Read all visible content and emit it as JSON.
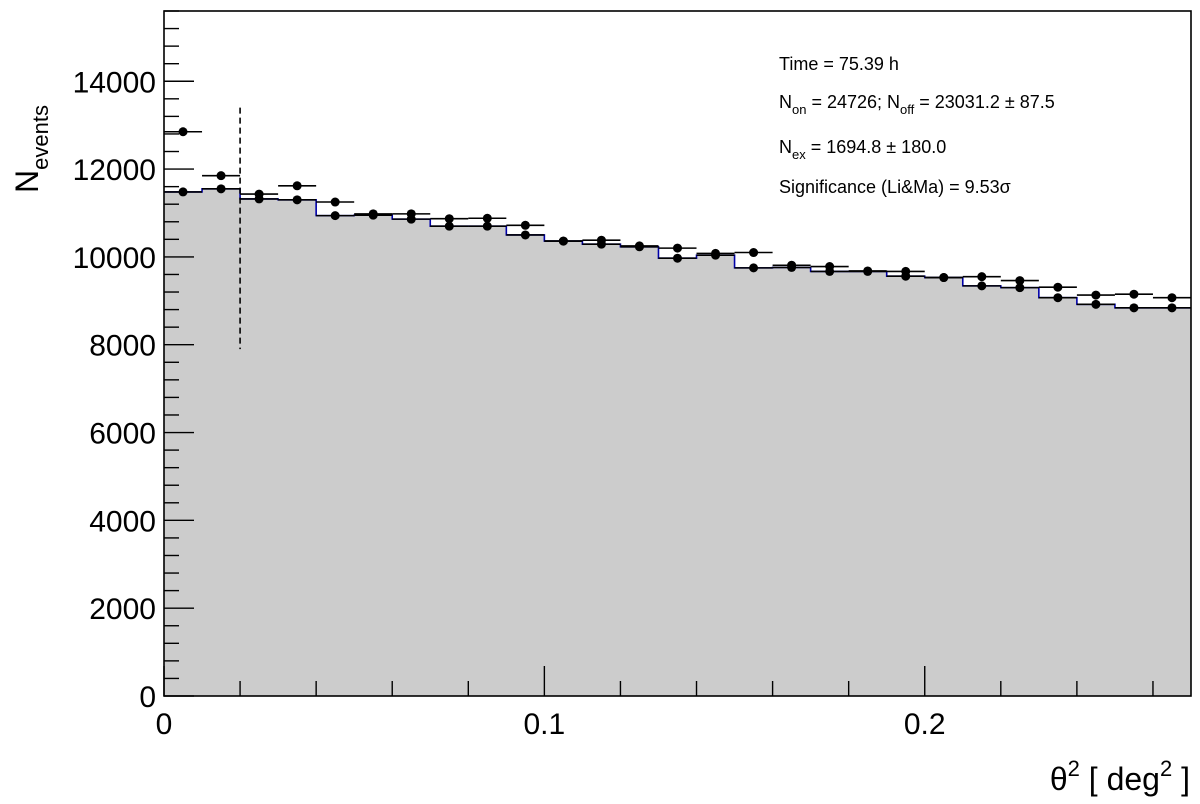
{
  "chart_data": {
    "type": "histogram",
    "xlabel": {
      "base": "θ",
      "sup": "2",
      "mid": " [ deg",
      "sup2": "2",
      "end": " ]"
    },
    "ylabel": {
      "base": "N",
      "sub": "events"
    },
    "xlim": [
      0,
      0.27
    ],
    "ylim": [
      0,
      15600
    ],
    "x_ticks": [
      {
        "value": 0,
        "label": "0"
      },
      {
        "value": 0.1,
        "label": "0.1"
      },
      {
        "value": 0.2,
        "label": "0.2"
      }
    ],
    "y_ticks": [
      {
        "value": 0,
        "label": "0"
      },
      {
        "value": 2000,
        "label": "2000"
      },
      {
        "value": 4000,
        "label": "4000"
      },
      {
        "value": 6000,
        "label": "6000"
      },
      {
        "value": 8000,
        "label": "8000"
      },
      {
        "value": 10000,
        "label": "10000"
      },
      {
        "value": 12000,
        "label": "12000"
      },
      {
        "value": 14000,
        "label": "14000"
      }
    ],
    "bin_width": 0.01,
    "cut_line": {
      "x": 0.02,
      "ymin": 7900,
      "ymax": 13400,
      "style": "dashed"
    },
    "series": [
      {
        "role": "on",
        "values": [
          12850,
          11850,
          11430,
          11620,
          11250,
          10980,
          10980,
          10870,
          10880,
          10720,
          10360,
          10380,
          10250,
          10200,
          10080,
          10100,
          9810,
          9780,
          9680,
          9670,
          9530,
          9550,
          9460,
          9310,
          9130,
          9150,
          9070
        ]
      },
      {
        "role": "off",
        "values": [
          11480,
          11550,
          11320,
          11300,
          10940,
          10950,
          10860,
          10700,
          10700,
          10500,
          10360,
          10290,
          10230,
          9970,
          10040,
          9750,
          9760,
          9670,
          9670,
          9560,
          9530,
          9340,
          9300,
          9070,
          8920,
          8840,
          8840
        ]
      }
    ],
    "stats": {
      "time": "Time = 75.39 h",
      "non_a": "N",
      "non_b": "on",
      "non_c": " = 24726; N",
      "non_d": "off",
      "non_e": " = 23031.2 ± 87.5",
      "nex_a": "N",
      "nex_b": "ex",
      "nex_c": " = 1694.8 ± 180.0",
      "significance": "Significance (Li&Ma) = 9.53σ"
    },
    "colors": {
      "fill": "#cccccc",
      "step_line": "#0000aa",
      "points": "#000000",
      "frame": "#000000"
    }
  }
}
